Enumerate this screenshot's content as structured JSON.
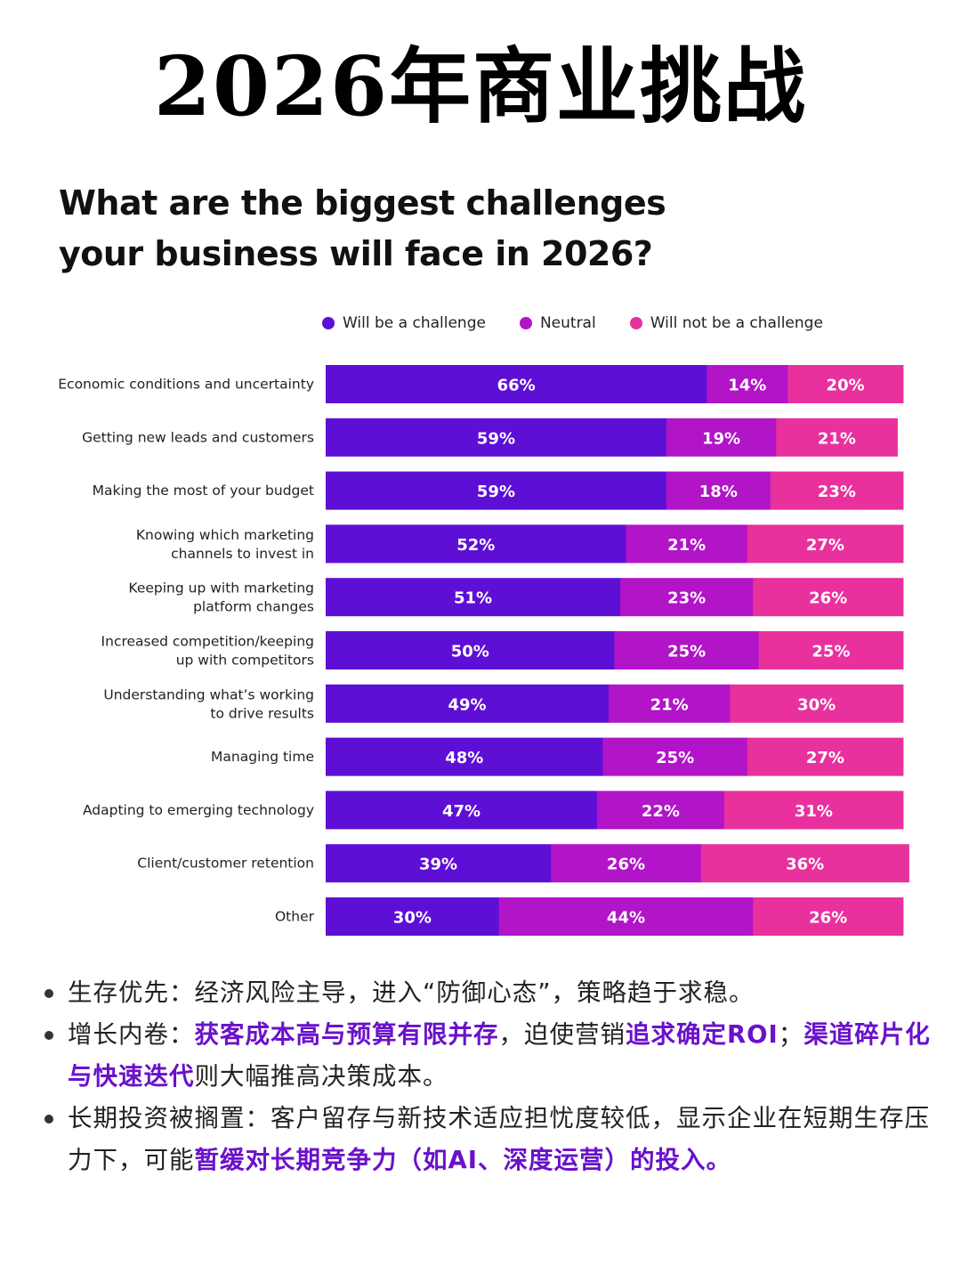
{
  "page_title": "2026年商业挑战",
  "chart_data": {
    "type": "bar",
    "orientation": "horizontal",
    "stacked": true,
    "title_lines": [
      "What are the biggest challenges",
      "your business will face in 2026?"
    ],
    "categories": [
      [
        "Economic conditions and uncertainty"
      ],
      [
        "Getting new leads and customers"
      ],
      [
        "Making the most of your budget"
      ],
      [
        "Knowing which marketing",
        "channels to invest in"
      ],
      [
        "Keeping up with marketing",
        "platform changes"
      ],
      [
        "Increased competition/keeping",
        "up with competitors"
      ],
      [
        "Understanding what’s working",
        "to drive results"
      ],
      [
        "Managing time"
      ],
      [
        "Adapting to emerging technology"
      ],
      [
        "Client/customer retention"
      ],
      [
        "Other"
      ]
    ],
    "series": [
      {
        "name": "Will be a challenge",
        "color": "#5e0fd6",
        "values": [
          66,
          59,
          59,
          52,
          51,
          50,
          49,
          48,
          47,
          39,
          30
        ]
      },
      {
        "name": "Neutral",
        "color": "#b214c8",
        "values": [
          14,
          19,
          18,
          21,
          23,
          25,
          21,
          25,
          22,
          26,
          44
        ]
      },
      {
        "name": "Will not be a challenge",
        "color": "#e8319c",
        "values": [
          20,
          21,
          23,
          27,
          26,
          25,
          30,
          27,
          31,
          36,
          26
        ]
      }
    ],
    "unit": "%",
    "xlim": [
      0,
      100
    ],
    "legend_position": "top"
  },
  "bullets": [
    {
      "parts": [
        {
          "text": "生存优先：经济风险主导，进入“防御心态”，策略趋于求稳。",
          "hl": false
        }
      ]
    },
    {
      "parts": [
        {
          "text": "增长内卷：",
          "hl": false
        },
        {
          "text": "获客成本高与预算有限并存",
          "hl": true
        },
        {
          "text": "，迫使营销",
          "hl": false
        },
        {
          "text": "追求确定ROI",
          "hl": true
        },
        {
          "text": "；",
          "hl": false
        },
        {
          "text": "渠道碎片化与快速迭代",
          "hl": true
        },
        {
          "text": "则大幅推高决策成本。",
          "hl": false
        }
      ]
    },
    {
      "parts": [
        {
          "text": "长期投资被搁置：客户留存与新技术适应担忧度较低，显示企业在短期生存压力下，可能",
          "hl": false
        },
        {
          "text": "暂缓对长期竞争力（如AI、深度运营）的投入。",
          "hl": true
        }
      ]
    }
  ]
}
